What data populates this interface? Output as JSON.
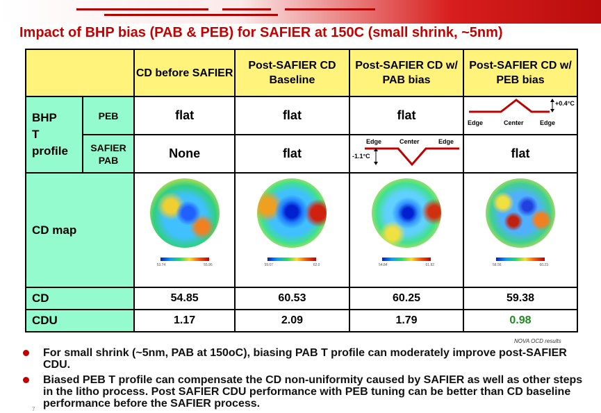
{
  "title": "Impact of BHP bias (PAB & PEB) for SAFIER at 150C (small shrink, ~5nm)",
  "table": {
    "columns": [
      "CD before SAFIER",
      "Post-SAFIER CD Baseline",
      "Post-SAFIER CD w/ PAB bias",
      "Post-SAFIER CD w/ PEB bias"
    ],
    "row_label_bhp": "BHP\nT\nprofile",
    "row_peb": "PEB",
    "row_safier_pab": "SAFIER\nPAB",
    "row_cd_map": "CD map",
    "row_cd": "CD",
    "row_cdu": "CDU",
    "peb_values": [
      "flat",
      "flat",
      "flat"
    ],
    "pab_values": [
      "None",
      "flat"
    ],
    "pab_last": "flat",
    "peb_diagram": {
      "delta": "+0.4°C",
      "left": "Edge",
      "center": "Center",
      "right": "Edge"
    },
    "pab_diagram": {
      "delta": "-1.1°C",
      "left": "Edge",
      "center": "Center",
      "right": "Edge"
    },
    "map_scales": [
      [
        "53.74",
        "55.96"
      ],
      [
        "59.07",
        "62.0"
      ],
      [
        "54.84",
        "61.82"
      ],
      [
        "58.56",
        "60.23"
      ]
    ],
    "cd_values": [
      "54.85",
      "60.53",
      "60.25",
      "59.38"
    ],
    "cdu_values": [
      "1.17",
      "2.09",
      "1.79",
      "0.98"
    ]
  },
  "note": "NOVA OCD results",
  "bullets": [
    "For small shrink (~5nm, PAB at 150oC), biasing PAB T profile can moderately improve post-SAFIER CDU.",
    "Biased PEB T profile can compensate the CD non-uniformity caused by SAFIER as well as other steps in the litho process. Post SAFIER CDU performance with PEB tuning can be better than CD baseline performance before the SAFIER process."
  ],
  "page_number": "7",
  "colors": {
    "title": "#c40000",
    "header_bg": "#fff37c",
    "label_bg": "#93fbcd",
    "good": "#1f8a1f"
  }
}
